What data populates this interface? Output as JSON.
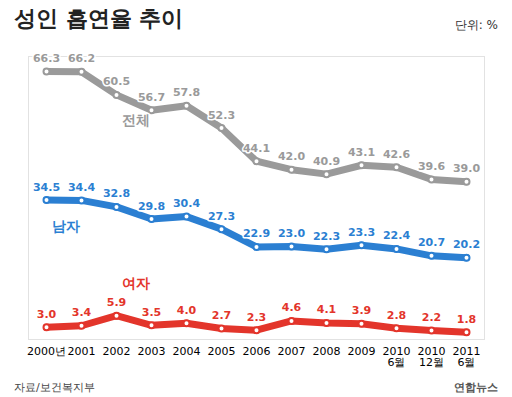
{
  "chart_data": {
    "type": "line",
    "title": "성인 흡연율 추이",
    "subtitle": "단위: %",
    "source": "자료/보건복지부",
    "credit": "연합뉴스",
    "categories": [
      "2000년",
      "2001",
      "2002",
      "2003",
      "2004",
      "2005",
      "2006",
      "2007",
      "2008",
      "2009",
      "2010\n6월",
      "2010\n12월",
      "2011\n6월"
    ],
    "series": [
      {
        "name": "전체",
        "color": "#9a9a9a",
        "values": [
          66.3,
          66.2,
          60.5,
          56.7,
          57.8,
          52.3,
          44.1,
          42.0,
          40.9,
          43.1,
          42.6,
          39.6,
          39.0
        ]
      },
      {
        "name": "남자",
        "color": "#2b7fd2",
        "values": [
          34.5,
          34.4,
          32.8,
          29.8,
          30.4,
          27.3,
          22.9,
          23.0,
          22.3,
          23.3,
          22.4,
          20.7,
          20.2
        ]
      },
      {
        "name": "여자",
        "color": "#e3352b",
        "values": [
          3.0,
          3.4,
          5.9,
          3.5,
          4.0,
          2.7,
          2.3,
          4.6,
          4.1,
          3.9,
          2.8,
          2.2,
          1.8
        ]
      }
    ],
    "ylim": [
      0,
      70
    ],
    "data_labels": true,
    "tick_labels": "x"
  }
}
